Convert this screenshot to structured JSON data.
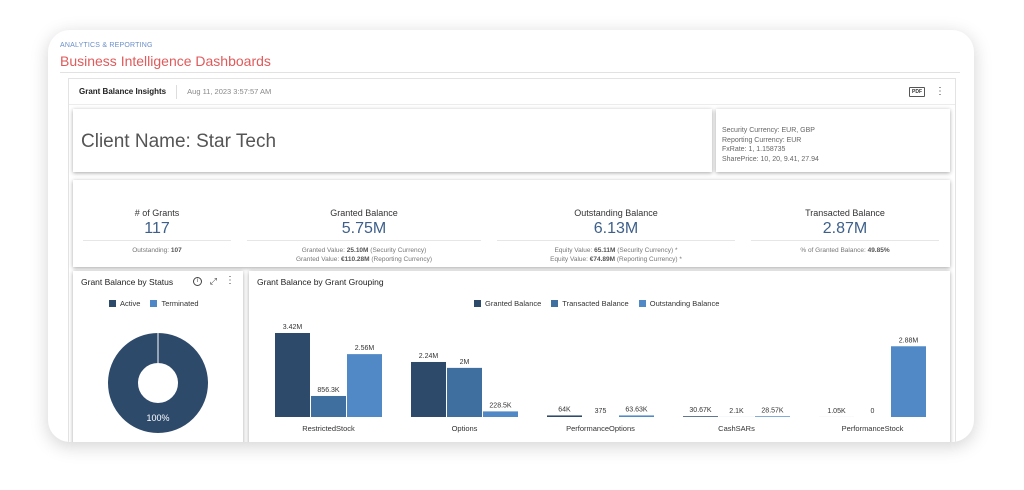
{
  "header": {
    "section": "ANALYTICS & REPORTING",
    "title": "Business Intelligence Dashboards"
  },
  "widget": {
    "title": "Grant Balance Insights",
    "timestamp": "Aug 11, 2023 3:57:57 AM",
    "pdf_label": "PDF",
    "menu_icon": "⋮"
  },
  "client": {
    "name": "Client Name: Star Tech"
  },
  "currency": {
    "security": "Security Currency: EUR, GBP",
    "reporting": "Reporting Currency: EUR",
    "fxrate": "FxRate: 1, 1.158735",
    "shareprice": "SharePrice: 10, 20, 9.41, 27.94"
  },
  "kpis": {
    "grants": {
      "label": "# of Grants",
      "value": "117",
      "sub1_label": "Outstanding:",
      "sub1_value": "107"
    },
    "granted": {
      "label": "Granted Balance",
      "value": "5.75M",
      "sub1_label": "Granted Value:",
      "sub1_value": "25.10M",
      "sub1_suffix": "(Security Currency)",
      "sub2_label": "Granted Value:",
      "sub2_value": "€110.28M",
      "sub2_suffix": "(Reporting Currency)"
    },
    "outstanding": {
      "label": "Outstanding Balance",
      "value": "6.13M",
      "sub1_label": "Equity Value:",
      "sub1_value": "65.11M",
      "sub1_suffix": "(Security Currency) *",
      "sub2_label": "Equity Value:",
      "sub2_value": "€74.89M",
      "sub2_suffix": "(Reporting Currency) *"
    },
    "transacted": {
      "label": "Transacted Balance",
      "value": "2.87M",
      "sub1_label": "% of Granted Balance:",
      "sub1_value": "49.85%"
    }
  },
  "status_chart": {
    "title": "Grant Balance by Status",
    "info_icon": "i",
    "expand_icon": "⤢",
    "menu_icon": "⋮",
    "legend": [
      {
        "name": "Active",
        "color": "#2e4a6b"
      },
      {
        "name": "Terminated",
        "color": "#4f86c6"
      }
    ]
  },
  "grouping_chart": {
    "title": "Grant Balance by Grant Grouping",
    "legend": [
      {
        "name": "Granted Balance",
        "color": "#2e4a6b"
      },
      {
        "name": "Transacted Balance",
        "color": "#3f6f9f"
      },
      {
        "name": "Outstanding Balance",
        "color": "#5089c6"
      }
    ]
  },
  "chart_data": [
    {
      "type": "pie",
      "donut": true,
      "title": "Grant Balance by Status",
      "slices": [
        {
          "name": "Active",
          "value": 100,
          "label": "100%",
          "color": "#2e4a6b"
        },
        {
          "name": "Terminated",
          "value": 0,
          "label": "",
          "color": "#4f86c6"
        }
      ]
    },
    {
      "type": "bar",
      "title": "Grant Balance by Grant Grouping",
      "categories": [
        "RestrictedStock",
        "Options",
        "PerformanceOptions",
        "CashSARs",
        "PerformanceStock"
      ],
      "series": [
        {
          "name": "Granted Balance",
          "color": "#2e4a6b",
          "values": [
            3420000,
            2240000,
            64000,
            30670,
            1050
          ],
          "labels": [
            "3.42M",
            "2.24M",
            "64K",
            "30.67K",
            "1.05K"
          ]
        },
        {
          "name": "Transacted Balance",
          "color": "#3f6f9f",
          "values": [
            856300,
            2000000,
            375,
            2100,
            0
          ],
          "labels": [
            "856.3K",
            "2M",
            "375",
            "2.1K",
            "0"
          ]
        },
        {
          "name": "Outstanding Balance",
          "color": "#5089c6",
          "values": [
            2560000,
            228500,
            63630,
            28570,
            2880000
          ],
          "labels": [
            "2.56M",
            "228.5K",
            "63.63K",
            "28.57K",
            "2.88M"
          ]
        }
      ],
      "ymax": 3420000,
      "grid": false,
      "legend": "top"
    }
  ]
}
